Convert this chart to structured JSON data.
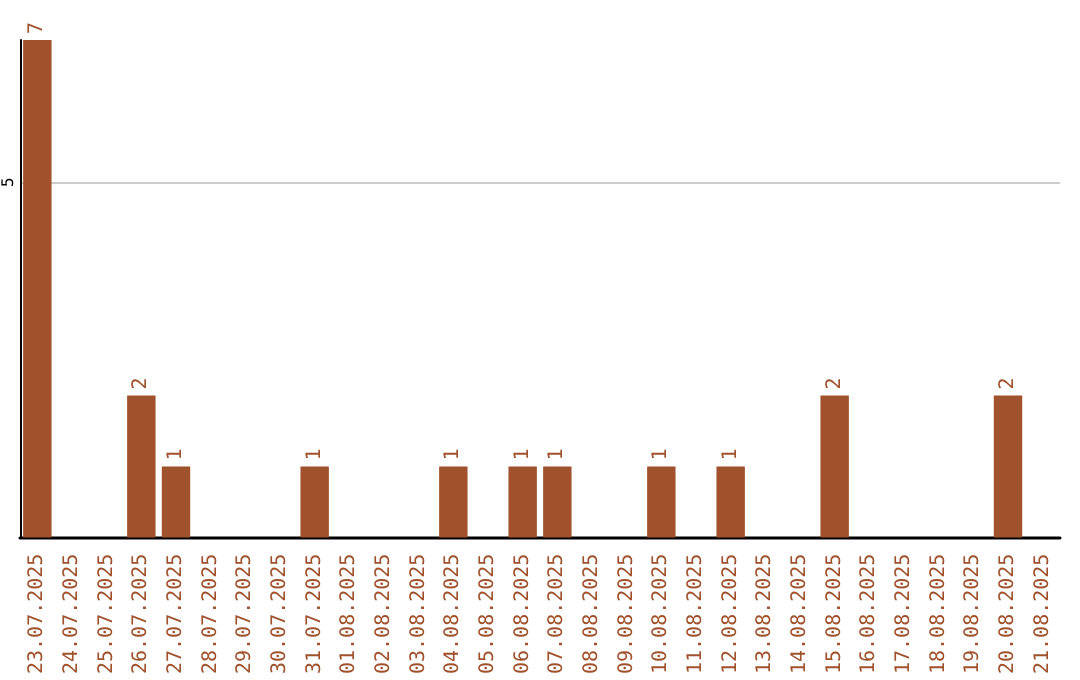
{
  "chart_data": {
    "type": "bar",
    "categories": [
      "23.07.2025",
      "24.07.2025",
      "25.07.2025",
      "26.07.2025",
      "27.07.2025",
      "28.07.2025",
      "29.07.2025",
      "30.07.2025",
      "31.07.2025",
      "01.08.2025",
      "02.08.2025",
      "03.08.2025",
      "04.08.2025",
      "05.08.2025",
      "06.08.2025",
      "07.08.2025",
      "08.08.2025",
      "09.08.2025",
      "10.08.2025",
      "11.08.2025",
      "12.08.2025",
      "13.08.2025",
      "14.08.2025",
      "15.08.2025",
      "16.08.2025",
      "17.08.2025",
      "18.08.2025",
      "19.08.2025",
      "20.08.2025",
      "21.08.2025"
    ],
    "values": [
      7,
      0,
      0,
      2,
      1,
      0,
      0,
      0,
      1,
      0,
      0,
      0,
      1,
      0,
      1,
      1,
      0,
      0,
      1,
      0,
      1,
      0,
      0,
      2,
      0,
      0,
      0,
      0,
      2,
      0
    ],
    "value_labels": [
      "7",
      null,
      null,
      "2",
      "1",
      null,
      null,
      null,
      "1",
      null,
      null,
      null,
      "1",
      null,
      "1",
      "1",
      null,
      null,
      "1",
      null,
      "1",
      null,
      null,
      "2",
      null,
      null,
      null,
      null,
      "2",
      null
    ],
    "color": "#a0522d",
    "ylim": [
      0,
      7
    ],
    "yticks": [
      5
    ],
    "grid": "y"
  }
}
